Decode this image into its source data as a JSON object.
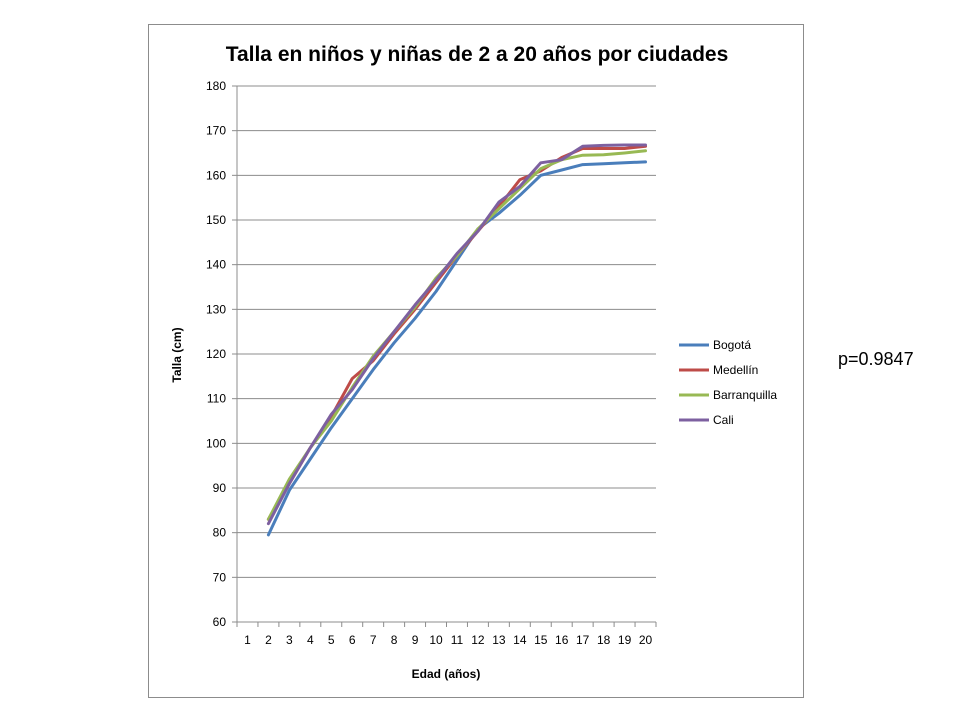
{
  "annotation": {
    "p_value_text": "p=0.9847"
  },
  "chart_data": {
    "type": "line",
    "title": "Talla en niños y niñas de 2 a 20 años por ciudades",
    "xlabel": "Edad (años)",
    "ylabel": "Talla (cm)",
    "categories": [
      "1",
      "2",
      "3",
      "4",
      "5",
      "6",
      "7",
      "8",
      "9",
      "10",
      "11",
      "12",
      "13",
      "14",
      "15",
      "16",
      "17",
      "18",
      "19",
      "20"
    ],
    "ylim": [
      60,
      180
    ],
    "yticks": [
      60,
      70,
      80,
      90,
      100,
      110,
      120,
      130,
      140,
      150,
      160,
      170,
      180
    ],
    "grid": true,
    "legend_position": "right",
    "series": [
      {
        "name": "Bogotá",
        "color": "#4a7ebb",
        "values": [
          null,
          79.5,
          89.5,
          96.5,
          103.5,
          110,
          116.5,
          122.5,
          128,
          134,
          141,
          148,
          151.5,
          155.5,
          160,
          161.2,
          162.4,
          162.6,
          162.8,
          163
        ]
      },
      {
        "name": "Medellín",
        "color": "#be4b48",
        "values": [
          null,
          83,
          91,
          99,
          106,
          114.5,
          118.5,
          124.5,
          130,
          136,
          142,
          147.5,
          153,
          159,
          161,
          164,
          166,
          166,
          166,
          166.5
        ]
      },
      {
        "name": "Barranquilla",
        "color": "#98b954",
        "values": [
          null,
          83,
          92,
          99,
          105,
          112.5,
          119.5,
          125,
          130.5,
          137,
          142,
          148,
          152.5,
          157,
          161.5,
          163.5,
          164.5,
          164.6,
          165,
          165.5
        ]
      },
      {
        "name": "Cali",
        "color": "#7d60a0",
        "values": [
          null,
          82,
          91,
          99,
          106.5,
          112,
          119,
          125,
          131,
          136.5,
          142.5,
          147.5,
          154,
          157.5,
          162.8,
          163.5,
          166.5,
          166.7,
          166.8,
          166.8
        ]
      }
    ]
  }
}
